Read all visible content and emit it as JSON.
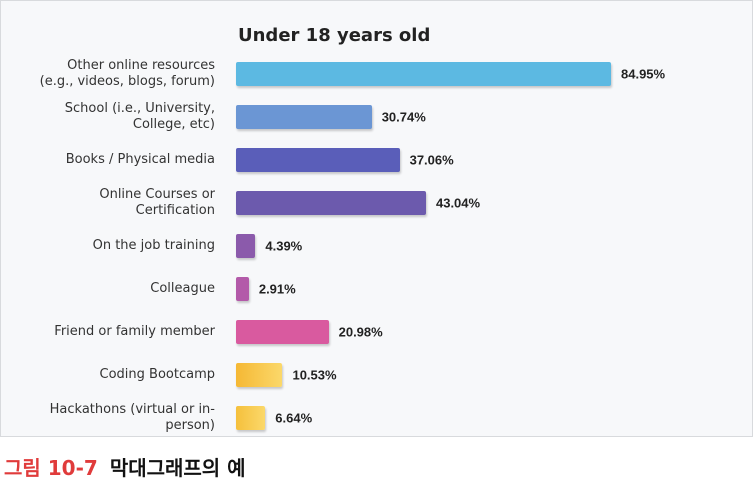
{
  "chart_data": {
    "type": "bar",
    "orientation": "horizontal",
    "title": "Under 18 years old",
    "categories": [
      "Other online resources\n(e.g., videos, blogs, forum)",
      "School (i.e., University,\nCollege, etc)",
      "Books / Physical media",
      "Online Courses or\nCertification",
      "On the job training",
      "Colleague",
      "Friend or family member",
      "Coding Bootcamp",
      "Hackathons (virtual or in-\nperson)"
    ],
    "values": [
      84.95,
      30.74,
      37.06,
      43.04,
      4.39,
      2.91,
      20.98,
      10.53,
      6.64
    ],
    "value_labels": [
      "84.95%",
      "30.74%",
      "37.06%",
      "43.04%",
      "4.39%",
      "2.91%",
      "20.98%",
      "10.53%",
      "6.64%"
    ],
    "colors": [
      "#5cb9e2",
      "#6b96d4",
      "#5a5eb9",
      "#6c5aad",
      "#8b5aab",
      "#b35aa9",
      "#d95a9f",
      "#f5b834",
      "#f5c03c"
    ]
  },
  "caption": {
    "label": "그림 10-7",
    "text": "막대그래프의 예"
  }
}
